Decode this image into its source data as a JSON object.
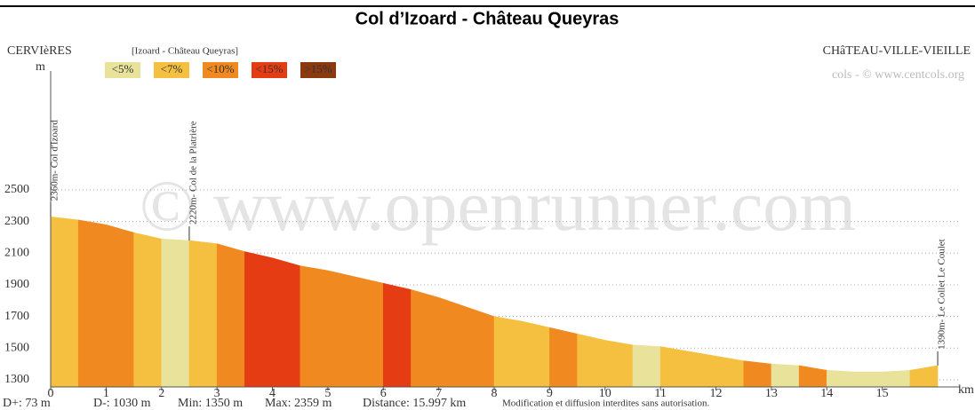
{
  "chart_data": {
    "type": "elevation-profile",
    "title": "Col d’Izoard - Château Queyras",
    "start_label": "CERVIèRES",
    "route_label": "[Izoard - Château Queyras]",
    "end_label": "CHâTEAU-VILLE-VIEILLE",
    "credit": "cols - © www.centcols.org",
    "watermark": "© www.openrunner.com",
    "y_label": "m",
    "x_label": "km",
    "legend": [
      {
        "name": "<5%",
        "color": "#e8e29a"
      },
      {
        "name": "<7%",
        "color": "#f5c040"
      },
      {
        "name": "<10%",
        "color": "#f08a20"
      },
      {
        "name": "<15%",
        "color": "#e63c14"
      },
      {
        "name": ">15%",
        "color": "#8b3a10"
      }
    ],
    "x": [
      0,
      0.5,
      1,
      1.5,
      2,
      2.5,
      3,
      3.5,
      4,
      4.5,
      5,
      5.5,
      6,
      6.5,
      7,
      7.5,
      8,
      8.5,
      9,
      9.5,
      10,
      10.5,
      11,
      11.5,
      12,
      12.5,
      13,
      13.5,
      14,
      14.5,
      15,
      15.5,
      16
    ],
    "values": [
      2330,
      2310,
      2280,
      2230,
      2190,
      2180,
      2160,
      2110,
      2070,
      2020,
      1990,
      1950,
      1910,
      1870,
      1820,
      1760,
      1700,
      1670,
      1630,
      1590,
      1550,
      1520,
      1510,
      1480,
      1450,
      1420,
      1400,
      1390,
      1360,
      1350,
      1350,
      1360,
      1390
    ],
    "segment_colors": [
      "#f5c040",
      "#f08a20",
      "#f08a20",
      "#f5c040",
      "#e8e29a",
      "#f5c040",
      "#f08a20",
      "#e63c14",
      "#e63c14",
      "#f08a20",
      "#f08a20",
      "#f08a20",
      "#e63c14",
      "#f08a20",
      "#f08a20",
      "#f08a20",
      "#f5c040",
      "#f5c040",
      "#f08a20",
      "#f5c040",
      "#f5c040",
      "#e8e29a",
      "#f5c040",
      "#f5c040",
      "#f5c040",
      "#f08a20",
      "#e8e29a",
      "#f08a20",
      "#e8e29a",
      "#e8e29a",
      "#e8e29a",
      "#f5c040"
    ],
    "xlim": [
      0,
      16.4
    ],
    "ylim": [
      1255,
      3195
    ],
    "xticks": [
      0,
      1,
      2,
      3,
      4,
      5,
      6,
      7,
      8,
      9,
      10,
      11,
      12,
      13,
      14,
      15
    ],
    "yticks": [
      1300,
      1500,
      1700,
      1900,
      2100,
      2300,
      2500
    ],
    "grid": true,
    "annotations": [
      {
        "label": "2360m- Col d'Izoard",
        "x": 0,
        "value": 2330
      },
      {
        "label": "2220m- Col de la Platrière",
        "x": 2.5,
        "value": 2180
      },
      {
        "label": "1390m- Le Collet Le Coulet",
        "x": 16,
        "value": 1390
      }
    ],
    "stats": [
      "D+: 73 m",
      "D-: 1030 m",
      "Min: 1350 m",
      "Max: 2359 m",
      "Distance: 15.997 km",
      "Modification et diffusion interdites sans autorisation."
    ]
  }
}
